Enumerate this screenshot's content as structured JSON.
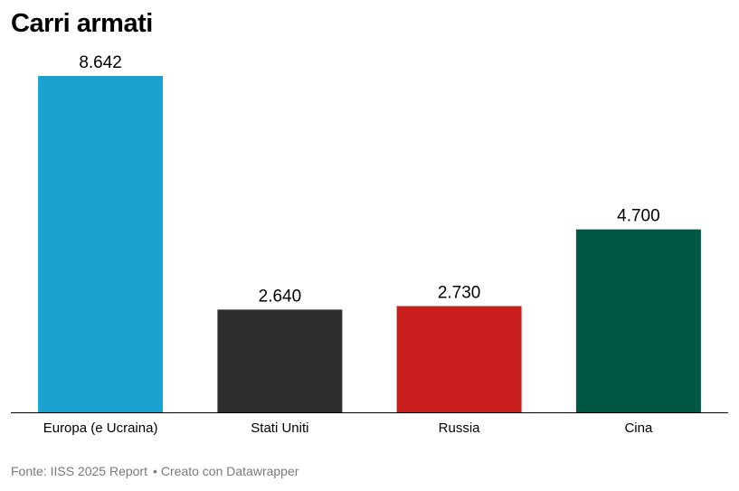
{
  "chart_data": {
    "type": "bar",
    "title": "Carri armati",
    "categories": [
      "Europa (e Ucraina)",
      "Stati Uniti",
      "Russia",
      "Cina"
    ],
    "values": [
      8642,
      2640,
      2730,
      4700
    ],
    "value_labels": [
      "8.642",
      "2.640",
      "2.730",
      "4.700"
    ],
    "colors": [
      "#1aa1cf",
      "#2e2e2e",
      "#c91e1e",
      "#005744"
    ],
    "ylim": [
      0,
      8642
    ],
    "grid": false,
    "xlabel": "",
    "ylabel": ""
  },
  "footer": {
    "source": "Fonte: IISS 2025 Report",
    "separator": "•",
    "credit": "Creato con Datawrapper"
  }
}
